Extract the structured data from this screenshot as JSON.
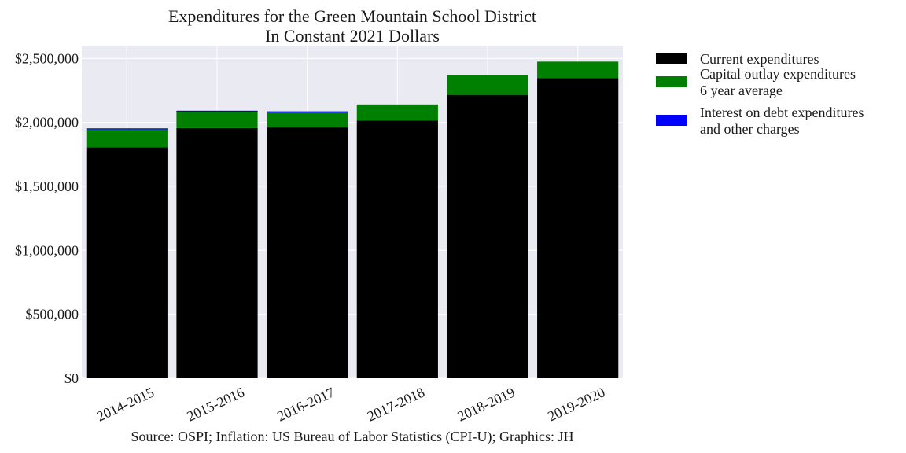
{
  "chart_data": {
    "type": "bar",
    "stacked": true,
    "title": [
      "Expenditures for the Green Mountain School District",
      "In Constant 2021 Dollars"
    ],
    "xlabel": "",
    "ylabel": "",
    "categories": [
      "2014-2015",
      "2015-2016",
      "2016-2017",
      "2017-2018",
      "2018-2019",
      "2019-2020"
    ],
    "series": [
      {
        "name": "Current expenditures",
        "color": "#000000",
        "values": [
          1805000,
          1955000,
          1960000,
          2015000,
          2215000,
          2345000
        ]
      },
      {
        "name": "Capital outlay expenditures\n6 year average",
        "color": "#008000",
        "values": [
          140000,
          128000,
          118000,
          125000,
          155000,
          130000
        ]
      },
      {
        "name": "Interest on debt expenditures\nand other charges",
        "color": "#0000ff",
        "values": [
          8000,
          8000,
          8000,
          0,
          0,
          0
        ]
      }
    ],
    "ylim": [
      0,
      2600000
    ],
    "yticks": [
      0,
      500000,
      1000000,
      1500000,
      2000000,
      2500000
    ],
    "ytick_labels": [
      "$0",
      "$500,000",
      "$1,000,000",
      "$1,500,000",
      "$2,000,000",
      "$2,500,000"
    ],
    "grid": true,
    "legend_position": "outside-right",
    "background_color": "#eaeaf2",
    "source": "Source: OSPI; Inflation: US Bureau of Labor Statistics (CPI-U); Graphics: JH"
  }
}
